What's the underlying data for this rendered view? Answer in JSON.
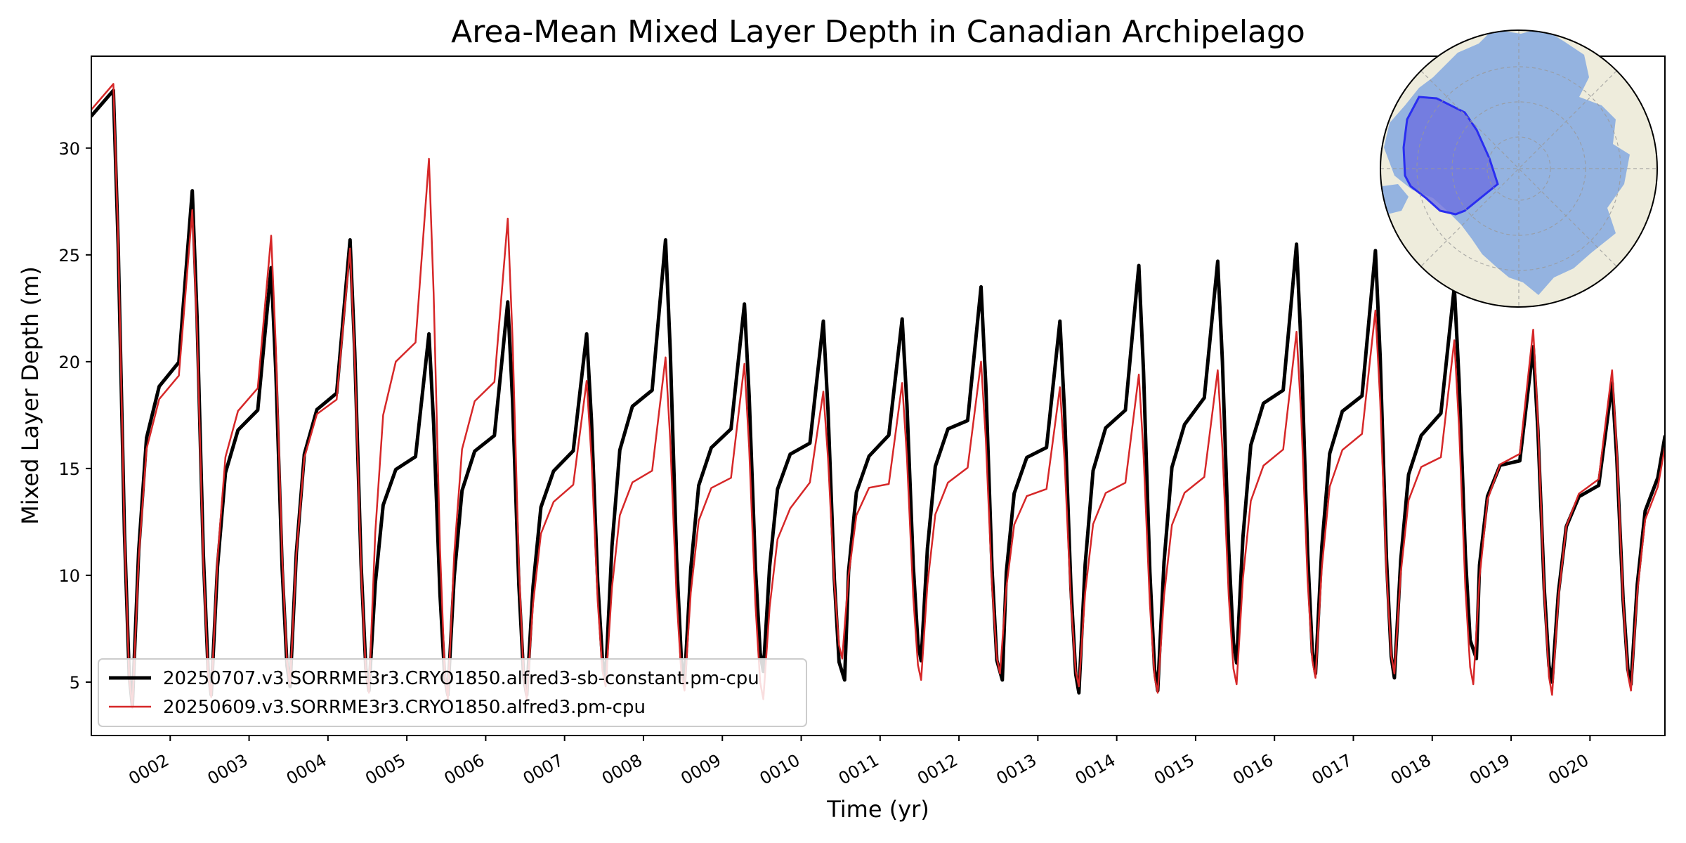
{
  "chart_data": {
    "type": "line",
    "title": "Area-Mean Mixed Layer Depth in Canadian Archipelago",
    "xlabel": "Time (yr)",
    "ylabel": "Mixed Layer Depth (m)",
    "xlim": [
      1.0,
      20.95
    ],
    "ylim": [
      2.5,
      34.3
    ],
    "xticks": [
      2,
      3,
      4,
      5,
      6,
      7,
      8,
      9,
      10,
      11,
      12,
      13,
      14,
      15,
      16,
      17,
      18,
      19,
      20
    ],
    "xtick_labels": [
      "0002",
      "0003",
      "0004",
      "0005",
      "0006",
      "0007",
      "0008",
      "0009",
      "0010",
      "0011",
      "0012",
      "0013",
      "0014",
      "0015",
      "0016",
      "0017",
      "0018",
      "0019",
      "0020"
    ],
    "yticks": [
      5,
      10,
      15,
      20,
      25,
      30
    ],
    "ytick_labels": [
      "5",
      "10",
      "15",
      "20",
      "25",
      "30"
    ],
    "grid": false,
    "legend_position": "lower-left",
    "inset": "polar map of the Arctic with the Canadian Archipelago region highlighted in blue (top-right)",
    "series": [
      {
        "name": "20250707.v3.SORRME3r3.CRYO1850.alfred3-sb-constant.pm-cpu",
        "color": "#000000",
        "width": 5,
        "peaks": [
          32.7,
          28.0,
          24.4,
          25.7,
          21.3,
          22.8,
          21.3,
          25.7,
          22.7,
          21.9,
          22.0,
          23.5,
          21.9,
          24.5,
          24.7,
          25.5,
          25.2,
          23.5,
          20.7,
          19.0
        ],
        "troughs": [
          3.9,
          4.4,
          4.8,
          4.6,
          4.4,
          4.4,
          5.2,
          5.0,
          5.5,
          5.1,
          6.0,
          5.1,
          4.5,
          4.6,
          5.9,
          5.4,
          5.2,
          6.1,
          5.0,
          4.9
        ],
        "trough_phase_offset": [
          0,
          0,
          0,
          0,
          0,
          0,
          0,
          0,
          0,
          0.03,
          0,
          0.03,
          0,
          0,
          0,
          0,
          0,
          0.04,
          0,
          0
        ],
        "end_value": 16.5
      },
      {
        "name": "20250609.v3.SORRME3r3.CRYO1850.alfred3.pm-cpu",
        "color": "#d62728",
        "width": 2.5,
        "peaks": [
          33.0,
          27.1,
          25.9,
          25.3,
          29.5,
          26.7,
          19.1,
          20.2,
          19.9,
          18.6,
          19.0,
          20.0,
          18.8,
          19.4,
          19.6,
          21.4,
          22.4,
          21.0,
          21.5,
          19.6
        ],
        "troughs": [
          3.8,
          4.3,
          4.9,
          4.5,
          4.2,
          4.2,
          4.8,
          4.6,
          4.2,
          6.1,
          5.1,
          5.4,
          4.8,
          4.5,
          4.9,
          5.2,
          5.4,
          4.9,
          4.4,
          4.6
        ],
        "trough_phase_offset": [
          0,
          0,
          0,
          0,
          0,
          0,
          0,
          0,
          0,
          0,
          0,
          0,
          0,
          0,
          0,
          0,
          0,
          0,
          0,
          0
        ],
        "end_value": 16.0
      }
    ]
  }
}
